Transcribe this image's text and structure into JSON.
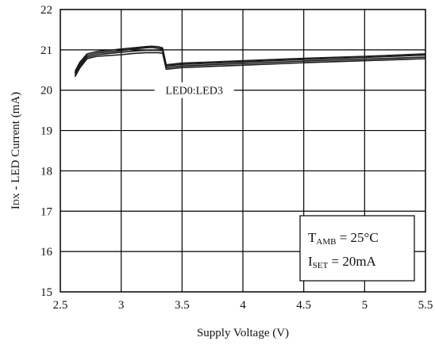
{
  "chart_data": {
    "type": "line",
    "title": "",
    "xlabel": "Supply Voltage (V)",
    "ylabel": {
      "prefix": "I",
      "sub": "DX",
      "rest": " - LED Current  (mA)"
    },
    "xlim": [
      2.5,
      5.5
    ],
    "ylim": [
      15,
      22
    ],
    "x_ticks": [
      2.5,
      3,
      3.5,
      4,
      4.5,
      5,
      5.5
    ],
    "x_tick_labels": [
      "2.5",
      "3",
      "3.5",
      "4",
      "4.5",
      "5",
      "5.5"
    ],
    "y_ticks": [
      15,
      16,
      17,
      18,
      19,
      20,
      21,
      22
    ],
    "y_tick_labels": [
      "15",
      "16",
      "17",
      "18",
      "19",
      "20",
      "21",
      "22"
    ],
    "grid": true,
    "series": [
      {
        "points": [
          [
            2.62,
            20.33
          ],
          [
            2.66,
            20.55
          ],
          [
            2.72,
            20.78
          ],
          [
            2.8,
            20.84
          ],
          [
            2.9,
            20.86
          ],
          [
            3.0,
            20.88
          ],
          [
            3.1,
            20.91
          ],
          [
            3.2,
            20.93
          ],
          [
            3.3,
            20.93
          ],
          [
            3.34,
            20.92
          ],
          [
            3.37,
            20.52
          ],
          [
            3.5,
            20.56
          ],
          [
            4.0,
            20.62
          ],
          [
            4.5,
            20.68
          ],
          [
            5.0,
            20.73
          ],
          [
            5.5,
            20.78
          ]
        ]
      },
      {
        "points": [
          [
            2.62,
            20.38
          ],
          [
            2.66,
            20.6
          ],
          [
            2.72,
            20.82
          ],
          [
            2.8,
            20.88
          ],
          [
            2.9,
            20.91
          ],
          [
            3.0,
            20.94
          ],
          [
            3.1,
            20.97
          ],
          [
            3.2,
            20.99
          ],
          [
            3.3,
            20.99
          ],
          [
            3.34,
            20.98
          ],
          [
            3.37,
            20.56
          ],
          [
            3.5,
            20.6
          ],
          [
            4.0,
            20.66
          ],
          [
            4.5,
            20.72
          ],
          [
            5.0,
            20.77
          ],
          [
            5.5,
            20.82
          ]
        ]
      },
      {
        "points": [
          [
            2.62,
            20.42
          ],
          [
            2.66,
            20.65
          ],
          [
            2.72,
            20.86
          ],
          [
            2.8,
            20.92
          ],
          [
            2.9,
            20.95
          ],
          [
            3.0,
            20.98
          ],
          [
            3.1,
            21.02
          ],
          [
            3.2,
            21.05
          ],
          [
            3.25,
            21.06
          ],
          [
            3.3,
            21.04
          ],
          [
            3.34,
            21.02
          ],
          [
            3.37,
            20.6
          ],
          [
            3.5,
            20.64
          ],
          [
            4.0,
            20.7
          ],
          [
            4.5,
            20.76
          ],
          [
            5.0,
            20.81
          ],
          [
            5.5,
            20.87
          ]
        ]
      },
      {
        "points": [
          [
            2.62,
            20.46
          ],
          [
            2.66,
            20.69
          ],
          [
            2.72,
            20.9
          ],
          [
            2.8,
            20.96
          ],
          [
            2.9,
            20.99
          ],
          [
            3.0,
            21.02
          ],
          [
            3.1,
            21.05
          ],
          [
            3.2,
            21.08
          ],
          [
            3.25,
            21.09
          ],
          [
            3.3,
            21.08
          ],
          [
            3.34,
            21.05
          ],
          [
            3.37,
            20.63
          ],
          [
            3.5,
            20.67
          ],
          [
            4.0,
            20.73
          ],
          [
            4.5,
            20.79
          ],
          [
            5.0,
            20.84
          ],
          [
            5.5,
            20.9
          ]
        ]
      }
    ],
    "annotations": [
      {
        "text": "LED0:LED3",
        "x": 3.6,
        "y": 20.0
      }
    ],
    "conditions": [
      {
        "main": "T",
        "sub": "AMB",
        "rest": " = 25°C"
      },
      {
        "main": "I",
        "sub": "SET",
        "rest": " = 20mA"
      }
    ]
  }
}
